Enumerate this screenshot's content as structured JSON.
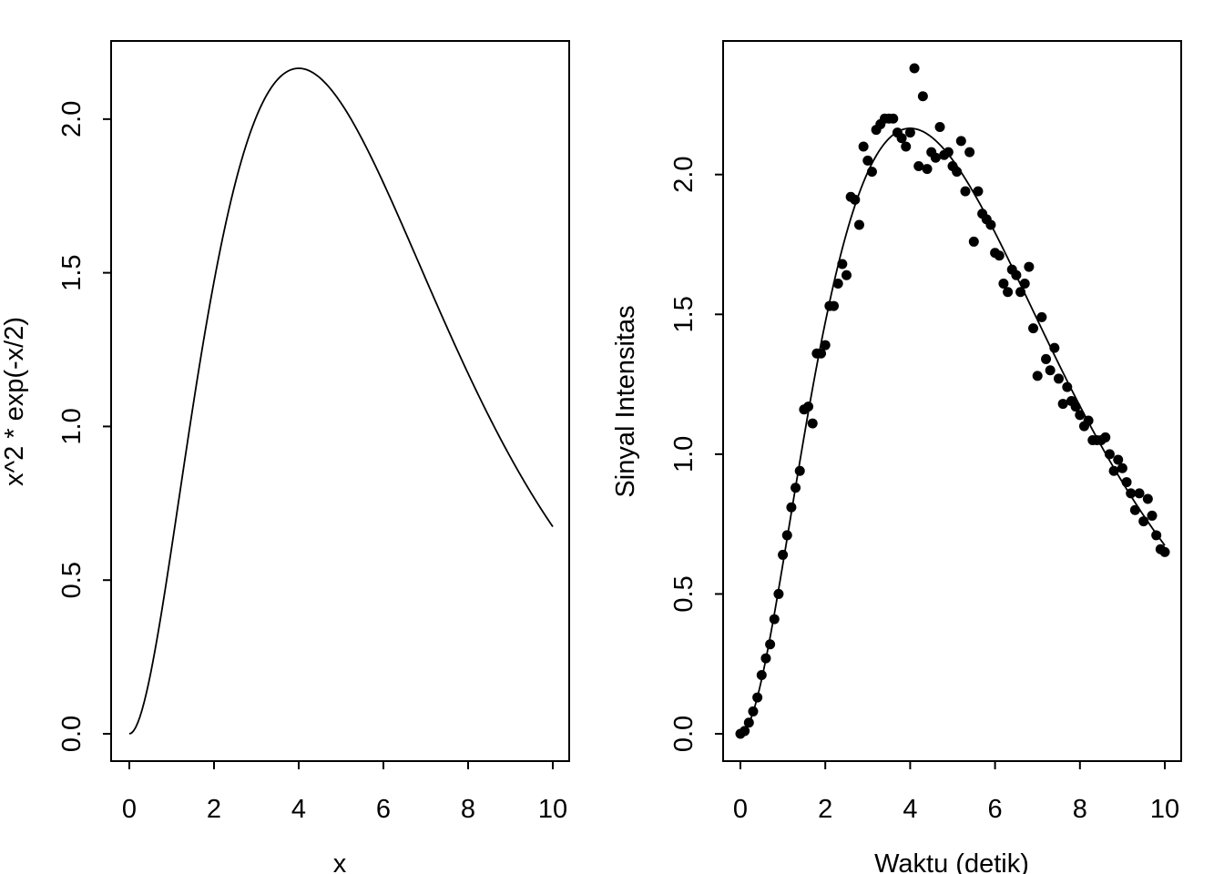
{
  "chart_data": [
    {
      "type": "line",
      "title": "",
      "xlabel": "x",
      "ylabel": "x^2 * exp(-x/2)",
      "xlim": [
        0,
        10
      ],
      "ylim": [
        0,
        2.1654
      ],
      "x_ticks": [
        "0",
        "2",
        "4",
        "6",
        "8",
        "10"
      ],
      "y_ticks": [
        "0.0",
        "0.5",
        "1.0",
        "1.5",
        "2.0"
      ],
      "function": "x^2 * exp(-x/2)",
      "series": [
        {
          "name": "x^2 * exp(-x/2)",
          "x": [
            0,
            0.5,
            1,
            1.5,
            2,
            2.5,
            3,
            3.5,
            4,
            4.5,
            5,
            5.5,
            6,
            6.5,
            7,
            7.5,
            8,
            8.5,
            9,
            9.5,
            10
          ],
          "y": [
            0,
            0.195,
            0.607,
            1.063,
            1.472,
            1.79,
            2.008,
            2.13,
            2.165,
            2.13,
            2.052,
            1.939,
            1.792,
            1.633,
            1.472,
            1.323,
            1.172,
            1.034,
            0.899,
            0.78,
            0.674
          ]
        }
      ]
    },
    {
      "type": "scatter",
      "title": "",
      "xlabel": "Waktu (detik)",
      "ylabel": "Sinyal Intensitas",
      "xlim": [
        0,
        10
      ],
      "ylim": [
        0,
        2.38
      ],
      "x_ticks": [
        "0",
        "2",
        "4",
        "6",
        "8",
        "10"
      ],
      "y_ticks": [
        "0.0",
        "0.5",
        "1.0",
        "1.5",
        "2.0"
      ],
      "fitted_curve": "x^2 * exp(-x/2)",
      "series": [
        {
          "name": "observations",
          "x": [
            0,
            0.1,
            0.2,
            0.3,
            0.4,
            0.5,
            0.6,
            0.7,
            0.8,
            0.9,
            1.0,
            1.1,
            1.2,
            1.3,
            1.4,
            1.5,
            1.6,
            1.7,
            1.8,
            1.9,
            2.0,
            2.1,
            2.2,
            2.3,
            2.4,
            2.5,
            2.6,
            2.7,
            2.8,
            2.9,
            3.0,
            3.1,
            3.2,
            3.3,
            3.4,
            3.5,
            3.6,
            3.7,
            3.8,
            3.9,
            4.0,
            4.1,
            4.2,
            4.3,
            4.4,
            4.5,
            4.6,
            4.7,
            4.8,
            4.9,
            5.0,
            5.1,
            5.2,
            5.3,
            5.4,
            5.5,
            5.6,
            5.7,
            5.8,
            5.9,
            6.0,
            6.1,
            6.2,
            6.3,
            6.4,
            6.5,
            6.6,
            6.7,
            6.8,
            6.9,
            7.0,
            7.1,
            7.2,
            7.3,
            7.4,
            7.5,
            7.6,
            7.7,
            7.8,
            7.9,
            8.0,
            8.1,
            8.2,
            8.3,
            8.4,
            8.5,
            8.6,
            8.7,
            8.8,
            8.9,
            9.0,
            9.1,
            9.2,
            9.3,
            9.4,
            9.5,
            9.6,
            9.7,
            9.8,
            9.9,
            10.0
          ],
          "y": [
            0.0,
            0.01,
            0.04,
            0.08,
            0.13,
            0.21,
            0.27,
            0.32,
            0.41,
            0.5,
            0.64,
            0.71,
            0.81,
            0.88,
            0.94,
            1.16,
            1.17,
            1.11,
            1.36,
            1.36,
            1.39,
            1.53,
            1.53,
            1.61,
            1.68,
            1.64,
            1.92,
            1.91,
            1.82,
            2.1,
            2.05,
            2.01,
            2.16,
            2.18,
            2.2,
            2.2,
            2.2,
            2.15,
            2.13,
            2.1,
            2.15,
            2.38,
            2.03,
            2.28,
            2.02,
            2.08,
            2.06,
            2.17,
            2.07,
            2.08,
            2.03,
            2.01,
            2.12,
            1.94,
            2.08,
            1.76,
            1.94,
            1.86,
            1.84,
            1.82,
            1.72,
            1.71,
            1.61,
            1.58,
            1.66,
            1.64,
            1.58,
            1.61,
            1.67,
            1.45,
            1.28,
            1.49,
            1.34,
            1.3,
            1.38,
            1.27,
            1.18,
            1.24,
            1.19,
            1.17,
            1.14,
            1.1,
            1.12,
            1.05,
            1.05,
            1.05,
            1.06,
            1.0,
            0.94,
            0.98,
            0.95,
            0.9,
            0.86,
            0.8,
            0.86,
            0.76,
            0.84,
            0.78,
            0.71,
            0.66,
            0.65
          ]
        },
        {
          "name": "fitted curve",
          "x": [
            0,
            0.5,
            1,
            1.5,
            2,
            2.5,
            3,
            3.5,
            4,
            4.5,
            5,
            5.5,
            6,
            6.5,
            7,
            7.5,
            8,
            8.5,
            9,
            9.5,
            10
          ],
          "y": [
            0,
            0.195,
            0.607,
            1.063,
            1.472,
            1.79,
            2.008,
            2.13,
            2.165,
            2.13,
            2.052,
            1.939,
            1.792,
            1.633,
            1.472,
            1.323,
            1.172,
            1.034,
            0.899,
            0.78,
            0.674
          ]
        }
      ]
    }
  ]
}
